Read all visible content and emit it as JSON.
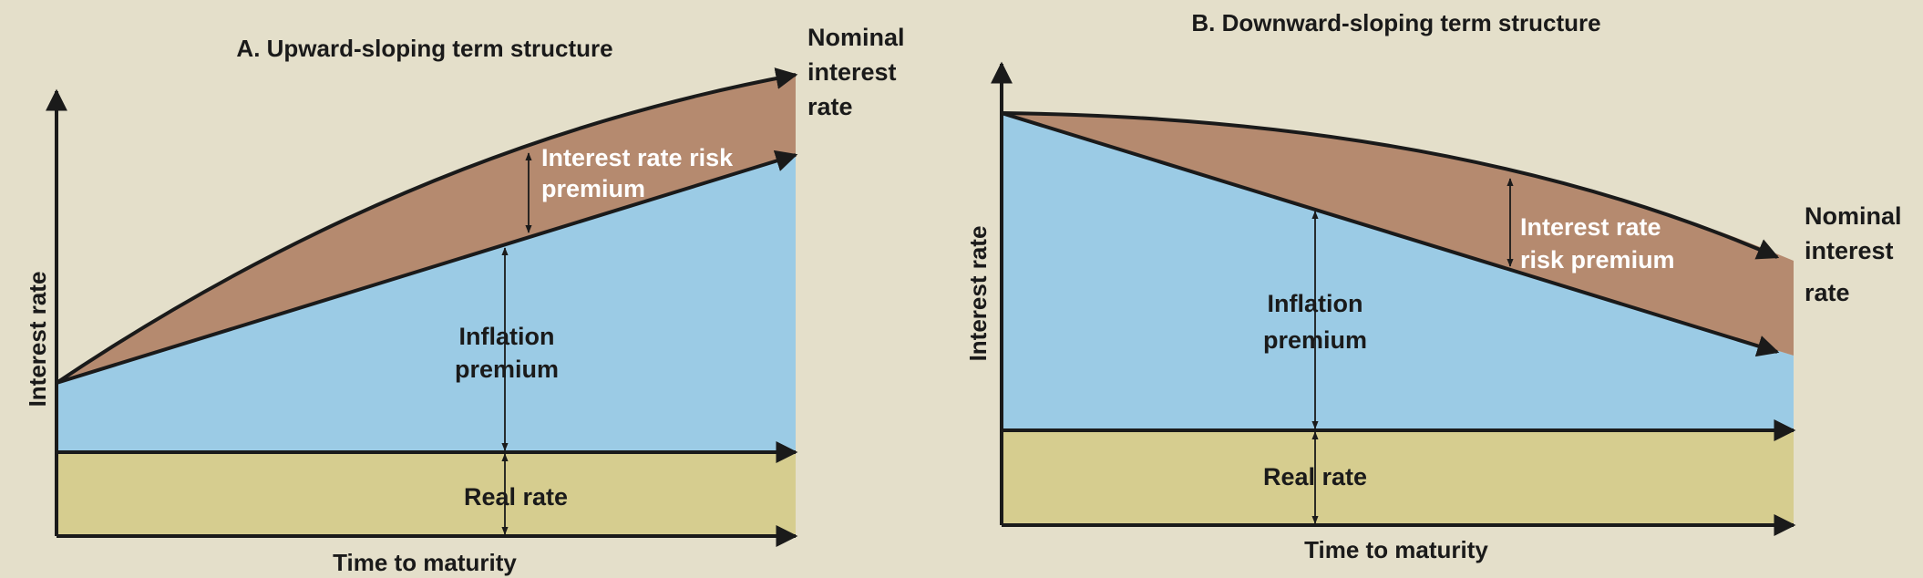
{
  "colors": {
    "background": "#e4dfca",
    "real_rate_fill": "#d6cd8f",
    "inflation_fill": "#9bcbe5",
    "risk_fill": "#b58a6f",
    "line": "#1a1a1a"
  },
  "panel_a": {
    "title": "A. Upward-sloping term structure",
    "y_axis_label": "Interest rate",
    "x_axis_label": "Time to maturity",
    "nominal_label": [
      "Nominal",
      "interest",
      "rate"
    ],
    "risk_label": [
      "Interest rate risk",
      "premium"
    ],
    "inflation_label": [
      "Inflation",
      "premium"
    ],
    "real_label": "Real rate"
  },
  "panel_b": {
    "title": "B. Downward-sloping term structure",
    "y_axis_label": "Interest rate",
    "x_axis_label": "Time to maturity",
    "nominal_label": [
      "Nominal",
      "interest",
      "rate"
    ],
    "risk_label": [
      "Interest rate",
      "risk premium"
    ],
    "inflation_label": [
      "Inflation",
      "premium"
    ],
    "real_label": "Real rate"
  }
}
